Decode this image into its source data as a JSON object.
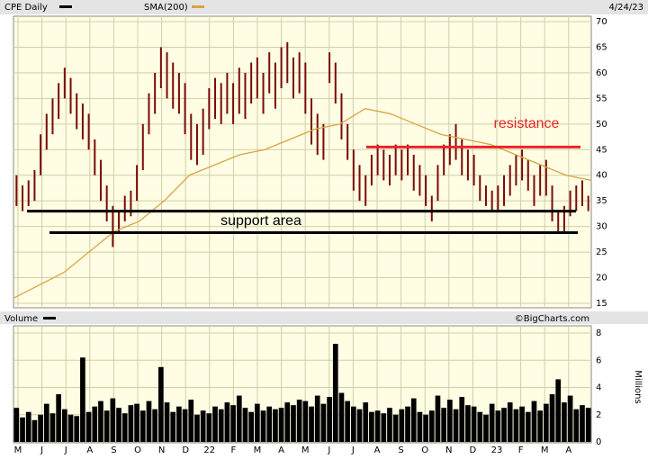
{
  "chart_data": [
    {
      "type": "range-bar",
      "title": "CPE Daily",
      "date": "4/24/23",
      "series": [
        {
          "name": "CPE Daily",
          "color": "#7a0a0a",
          "high": [
            40,
            38,
            39,
            41,
            48,
            52,
            55,
            58,
            61,
            59,
            56,
            54,
            52,
            47,
            43,
            38,
            34,
            33,
            36,
            37,
            42,
            50,
            56,
            60,
            65,
            64,
            62,
            60,
            58,
            52,
            50,
            53,
            57,
            59,
            58,
            60,
            58,
            61,
            60,
            62,
            63,
            60,
            64,
            62,
            65,
            66,
            63,
            64,
            62,
            55,
            52,
            50,
            64,
            62,
            56,
            50,
            45,
            42,
            40,
            44,
            46,
            45,
            44,
            46,
            45,
            46,
            44,
            42,
            40,
            36,
            42,
            46,
            48,
            50,
            47,
            45,
            44,
            40,
            38,
            37,
            38,
            40,
            42,
            44,
            45,
            43,
            40,
            42,
            43,
            38,
            33,
            34,
            37,
            38,
            39,
            36
          ],
          "low": [
            34,
            33,
            34,
            35,
            40,
            45,
            48,
            51,
            55,
            52,
            49,
            47,
            45,
            40,
            35,
            31,
            26,
            29,
            31,
            32,
            35,
            41,
            48,
            52,
            57,
            55,
            53,
            52,
            48,
            43,
            42,
            44,
            49,
            51,
            50,
            52,
            50,
            52,
            51,
            54,
            55,
            52,
            56,
            53,
            57,
            58,
            55,
            56,
            52,
            46,
            44,
            43,
            58,
            54,
            47,
            43,
            37,
            35,
            34,
            38,
            40,
            39,
            38,
            40,
            39,
            40,
            37,
            36,
            34,
            31,
            35,
            40,
            42,
            43,
            40,
            39,
            38,
            35,
            34,
            33,
            33,
            34,
            36,
            38,
            39,
            37,
            34,
            36,
            36,
            31,
            29,
            29,
            32,
            33,
            34,
            33
          ]
        },
        {
          "name": "SMA(200)",
          "color": "#d9a441",
          "values": [
            16,
            18.5,
            21,
            25,
            29,
            31,
            35,
            40,
            42,
            44,
            45,
            47,
            49,
            50,
            53,
            52,
            50,
            48,
            47,
            46,
            44,
            42,
            40,
            39
          ]
        }
      ],
      "ylim": [
        15,
        70
      ],
      "yticks": [
        15,
        20,
        25,
        30,
        35,
        40,
        45,
        50,
        55,
        60,
        65,
        70
      ],
      "grid": true,
      "lines": [
        {
          "value": 45.5,
          "color": "#e8242a"
        },
        {
          "value": 33,
          "color": "#000000"
        },
        {
          "value": 28.8,
          "color": "#000000"
        }
      ],
      "annotations": [
        {
          "text": "resistance",
          "value": 50,
          "color": "#e8242a"
        },
        {
          "text": "support area",
          "value": 31
        }
      ]
    },
    {
      "type": "bar",
      "title": "Volume",
      "ylabel": "Millions",
      "source": "©BigCharts.com",
      "color": "#000000",
      "values": [
        2.5,
        1.8,
        2.2,
        1.6,
        2.0,
        2.8,
        2.1,
        3.5,
        2.4,
        2.0,
        1.9,
        6.2,
        2.2,
        2.6,
        3.0,
        2.3,
        3.2,
        2.5,
        2.1,
        2.7,
        2.8,
        2.3,
        3.0,
        2.4,
        5.5,
        2.9,
        2.2,
        2.6,
        2.4,
        3.1,
        2.0,
        2.3,
        2.1,
        2.6,
        2.4,
        2.9,
        2.7,
        3.4,
        2.5,
        2.2,
        2.8,
        2.3,
        2.6,
        2.4,
        2.5,
        2.9,
        2.7,
        3.1,
        3.0,
        2.6,
        3.4,
        2.8,
        3.3,
        7.2,
        3.6,
        3.0,
        2.6,
        2.4,
        2.9,
        2.2,
        2.3,
        2.1,
        2.5,
        2.0,
        2.4,
        2.6,
        3.2,
        2.2,
        2.0,
        2.3,
        3.4,
        2.5,
        3.1,
        2.4,
        3.3,
        2.7,
        2.6,
        2.2,
        2.0,
        2.8,
        2.3,
        2.5,
        2.9,
        2.4,
        2.6,
        2.2,
        3.0,
        2.3,
        2.8,
        3.5,
        4.6,
        2.9,
        3.4,
        2.4,
        2.7,
        2.5
      ],
      "ylim": [
        0,
        8
      ],
      "yticks": [
        0,
        2,
        4,
        6,
        8
      ],
      "grid": true,
      "xticks": [
        "M",
        "J",
        "J",
        "A",
        "S",
        "O",
        "N",
        "D",
        "22",
        "F",
        "M",
        "A",
        "M",
        "J",
        "J",
        "A",
        "S",
        "O",
        "N",
        "D",
        "23",
        "F",
        "M",
        "A"
      ]
    }
  ]
}
